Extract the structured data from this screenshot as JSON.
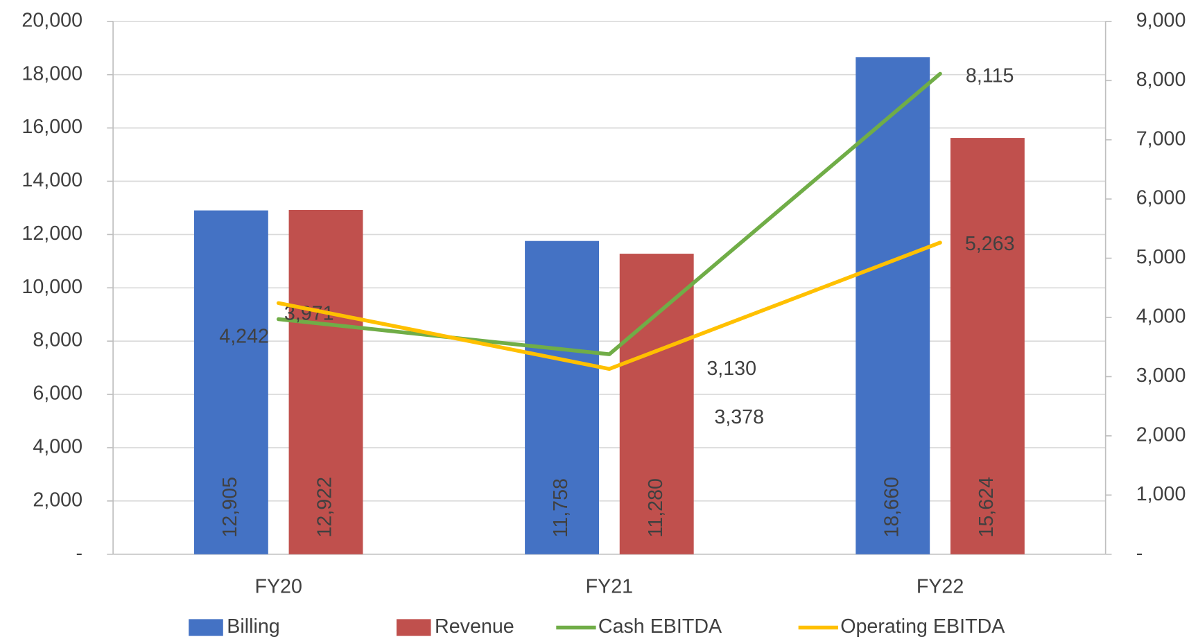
{
  "chart_data": {
    "type": "bar_line",
    "categories": [
      "FY20",
      "FY21",
      "FY22"
    ],
    "series": [
      {
        "name": "Billing",
        "type": "bar",
        "color": "#4472c4",
        "values": [
          12905,
          11758,
          18660
        ],
        "value_labels": [
          "12,905",
          "11,758",
          "18,660"
        ]
      },
      {
        "name": "Revenue",
        "type": "bar",
        "color": "#c0504d",
        "values": [
          12922,
          11280,
          15624
        ],
        "value_labels": [
          "12,922",
          "11,280",
          "15,624"
        ]
      },
      {
        "name": "Cash EBITDA",
        "type": "line",
        "axis": "y2",
        "color": "#70ad47",
        "values": [
          3971,
          3378,
          8115
        ],
        "value_labels": [
          "3,971",
          "3,378",
          "8,115"
        ]
      },
      {
        "name": "Operating EBITDA",
        "type": "line",
        "axis": "y2",
        "color": "#ffc000",
        "values": [
          4242,
          3130,
          5263
        ],
        "value_labels": [
          "4,242",
          "3,130",
          "5,263"
        ]
      }
    ],
    "ylim": [
      0,
      20000
    ],
    "yticks": [
      {
        "value": 0,
        "label": "-"
      },
      {
        "value": 2000,
        "label": "2,000"
      },
      {
        "value": 4000,
        "label": "4,000"
      },
      {
        "value": 6000,
        "label": "6,000"
      },
      {
        "value": 8000,
        "label": "8,000"
      },
      {
        "value": 10000,
        "label": "10,000"
      },
      {
        "value": 12000,
        "label": "12,000"
      },
      {
        "value": 14000,
        "label": "14,000"
      },
      {
        "value": 16000,
        "label": "16,000"
      },
      {
        "value": 18000,
        "label": "18,000"
      },
      {
        "value": 20000,
        "label": "20,000"
      }
    ],
    "y2lim": [
      0,
      9000
    ],
    "y2ticks": [
      {
        "value": 0,
        "label": "-"
      },
      {
        "value": 1000,
        "label": "1,000"
      },
      {
        "value": 2000,
        "label": "2,000"
      },
      {
        "value": 3000,
        "label": "3,000"
      },
      {
        "value": 4000,
        "label": "4,000"
      },
      {
        "value": 5000,
        "label": "5,000"
      },
      {
        "value": 6000,
        "label": "6,000"
      },
      {
        "value": 7000,
        "label": "7,000"
      },
      {
        "value": 8000,
        "label": "8,000"
      },
      {
        "value": 9000,
        "label": "9,000"
      }
    ],
    "grid": true,
    "legend": "bottom"
  }
}
